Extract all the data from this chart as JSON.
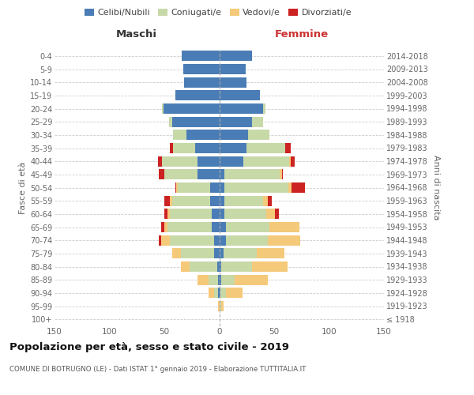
{
  "age_groups": [
    "100+",
    "95-99",
    "90-94",
    "85-89",
    "80-84",
    "75-79",
    "70-74",
    "65-69",
    "60-64",
    "55-59",
    "50-54",
    "45-49",
    "40-44",
    "35-39",
    "30-34",
    "25-29",
    "20-24",
    "15-19",
    "10-14",
    "5-9",
    "0-4"
  ],
  "birth_years": [
    "≤ 1918",
    "1919-1923",
    "1924-1928",
    "1929-1933",
    "1934-1938",
    "1939-1943",
    "1944-1948",
    "1949-1953",
    "1954-1958",
    "1959-1963",
    "1964-1968",
    "1969-1973",
    "1974-1978",
    "1979-1983",
    "1984-1988",
    "1989-1993",
    "1994-1998",
    "1999-2003",
    "2004-2008",
    "2009-2013",
    "2014-2018"
  ],
  "males": {
    "celibi": [
      0,
      0,
      1,
      1,
      2,
      5,
      5,
      7,
      7,
      8,
      8,
      20,
      20,
      22,
      30,
      43,
      51,
      40,
      32,
      33,
      34
    ],
    "coniugati": [
      0,
      0,
      4,
      9,
      25,
      30,
      40,
      40,
      38,
      35,
      30,
      30,
      32,
      20,
      12,
      3,
      1,
      0,
      0,
      0,
      0
    ],
    "vedovi": [
      0,
      1,
      5,
      10,
      8,
      8,
      8,
      3,
      2,
      2,
      1,
      0,
      0,
      0,
      0,
      0,
      0,
      0,
      0,
      0,
      0
    ],
    "divorziati": [
      0,
      0,
      0,
      0,
      0,
      0,
      2,
      3,
      3,
      5,
      1,
      5,
      4,
      3,
      0,
      0,
      0,
      0,
      0,
      0,
      0
    ]
  },
  "females": {
    "nubili": [
      0,
      0,
      1,
      2,
      2,
      4,
      6,
      6,
      5,
      5,
      5,
      5,
      22,
      25,
      26,
      30,
      40,
      37,
      25,
      24,
      30
    ],
    "coniugate": [
      0,
      2,
      5,
      12,
      28,
      30,
      38,
      40,
      38,
      35,
      58,
      50,
      42,
      35,
      20,
      10,
      2,
      0,
      0,
      0,
      0
    ],
    "vedove": [
      0,
      2,
      15,
      30,
      32,
      25,
      30,
      27,
      8,
      4,
      3,
      2,
      1,
      0,
      0,
      0,
      0,
      0,
      0,
      0,
      0
    ],
    "divorziate": [
      0,
      0,
      0,
      0,
      0,
      0,
      0,
      0,
      3,
      4,
      12,
      1,
      4,
      5,
      0,
      0,
      0,
      0,
      0,
      0,
      0
    ]
  },
  "colors": {
    "celibi": "#4a7db5",
    "coniugati": "#c8d9a8",
    "vedovi": "#f5c97a",
    "divorziati": "#cc2222"
  },
  "xlim": 150,
  "title": "Popolazione per età, sesso e stato civile - 2019",
  "subtitle": "COMUNE DI BOTRUGNO (LE) - Dati ISTAT 1° gennaio 2019 - Elaborazione TUTTITALIA.IT",
  "ylabel_left": "Fasce di età",
  "ylabel_right": "Anni di nascita",
  "header_left": "Maschi",
  "header_right": "Femmine"
}
